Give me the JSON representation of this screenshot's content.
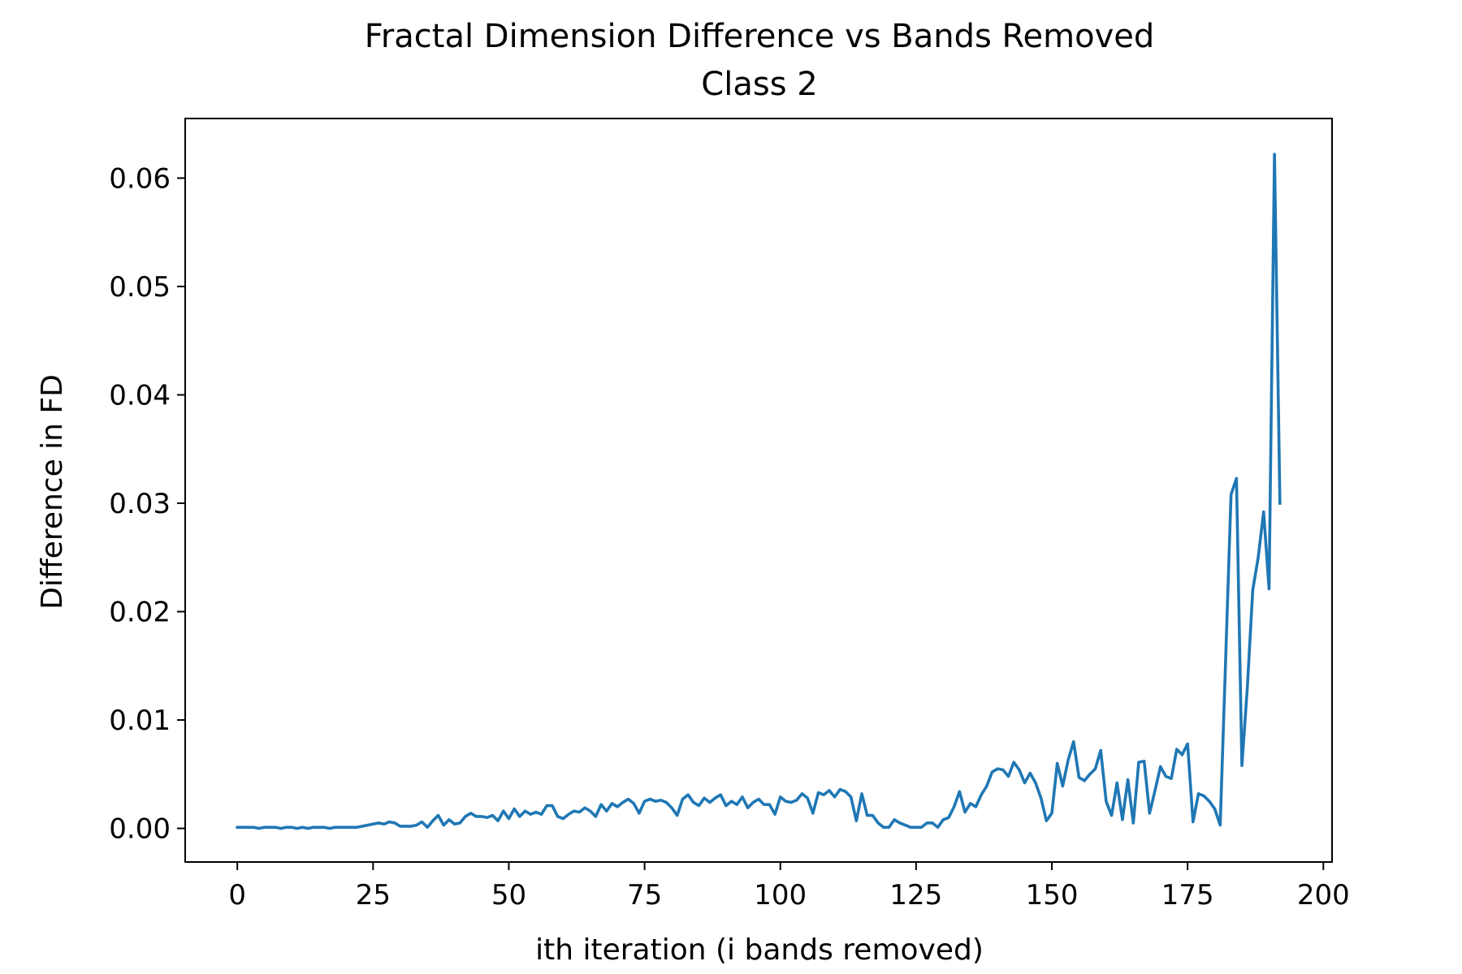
{
  "chart_data": {
    "type": "line",
    "title": "Fractal Dimension Difference vs Bands Removed",
    "subtitle": "Class 2",
    "xlabel": "ith iteration (i bands removed)",
    "ylabel": "Difference in FD",
    "xlim": [
      -9.6,
      201.6
    ],
    "ylim": [
      -0.0031,
      0.0655
    ],
    "x_ticks": [
      0,
      25,
      50,
      75,
      100,
      125,
      150,
      175,
      200
    ],
    "x_tick_labels": [
      "0",
      "25",
      "50",
      "75",
      "100",
      "125",
      "150",
      "175",
      "200"
    ],
    "y_ticks": [
      0.0,
      0.01,
      0.02,
      0.03,
      0.04,
      0.05,
      0.06
    ],
    "y_tick_labels": [
      "0.00",
      "0.01",
      "0.02",
      "0.03",
      "0.04",
      "0.05",
      "0.06"
    ],
    "grid": false,
    "legend": "none",
    "series": [
      {
        "color": "#1f77b4",
        "x_start": 0,
        "x_step": 1,
        "values": [
          0.0001,
          0.0001,
          0.0001,
          0.0001,
          0.0,
          0.0001,
          0.0001,
          0.0001,
          0.0,
          0.0001,
          0.0001,
          0.0,
          0.0001,
          0.0,
          0.0001,
          0.0001,
          0.0001,
          0.0,
          0.0001,
          0.0001,
          0.0001,
          0.0001,
          0.0001,
          0.0002,
          0.0003,
          0.0004,
          0.0005,
          0.0004,
          0.0006,
          0.0005,
          0.0002,
          0.0002,
          0.0002,
          0.0003,
          0.0006,
          0.0001,
          0.0007,
          0.0012,
          0.0003,
          0.0008,
          0.0004,
          0.0005,
          0.0011,
          0.0014,
          0.0011,
          0.0011,
          0.001,
          0.0012,
          0.0007,
          0.0016,
          0.0009,
          0.0018,
          0.0011,
          0.0016,
          0.0013,
          0.0015,
          0.0013,
          0.0021,
          0.0021,
          0.0011,
          0.0009,
          0.0013,
          0.0016,
          0.0015,
          0.0019,
          0.0016,
          0.0011,
          0.0022,
          0.0016,
          0.0023,
          0.002,
          0.0024,
          0.0027,
          0.0023,
          0.0014,
          0.0025,
          0.0027,
          0.0025,
          0.0026,
          0.0024,
          0.0019,
          0.0012,
          0.0027,
          0.0031,
          0.0024,
          0.0021,
          0.0028,
          0.0024,
          0.0028,
          0.0031,
          0.0021,
          0.0025,
          0.0022,
          0.0029,
          0.0019,
          0.0024,
          0.0027,
          0.0022,
          0.0022,
          0.0013,
          0.0029,
          0.0025,
          0.0024,
          0.0026,
          0.0032,
          0.0028,
          0.0014,
          0.0033,
          0.0031,
          0.0035,
          0.0029,
          0.0036,
          0.0034,
          0.0029,
          0.0007,
          0.0032,
          0.0012,
          0.0012,
          0.0005,
          0.0001,
          0.0001,
          0.0008,
          0.0005,
          0.0003,
          0.0001,
          0.0001,
          0.0001,
          0.0005,
          0.0005,
          0.0001,
          0.0008,
          0.001,
          0.002,
          0.0034,
          0.0015,
          0.0023,
          0.002,
          0.0031,
          0.0039,
          0.0052,
          0.0055,
          0.0054,
          0.0048,
          0.0061,
          0.0054,
          0.0042,
          0.0051,
          0.0042,
          0.0028,
          0.0007,
          0.0014,
          0.006,
          0.0039,
          0.0063,
          0.008,
          0.0047,
          0.0044,
          0.005,
          0.0055,
          0.0072,
          0.0025,
          0.0012,
          0.0042,
          0.0008,
          0.0045,
          0.0005,
          0.0061,
          0.0062,
          0.0014,
          0.0035,
          0.0057,
          0.0048,
          0.0046,
          0.0073,
          0.0068,
          0.0078,
          0.0006,
          0.0032,
          0.003,
          0.0025,
          0.0018,
          0.0003,
          0.0155,
          0.0308,
          0.0323,
          0.0058,
          0.013,
          0.022,
          0.025,
          0.0292,
          0.0221,
          0.0622,
          0.03
        ]
      }
    ]
  }
}
